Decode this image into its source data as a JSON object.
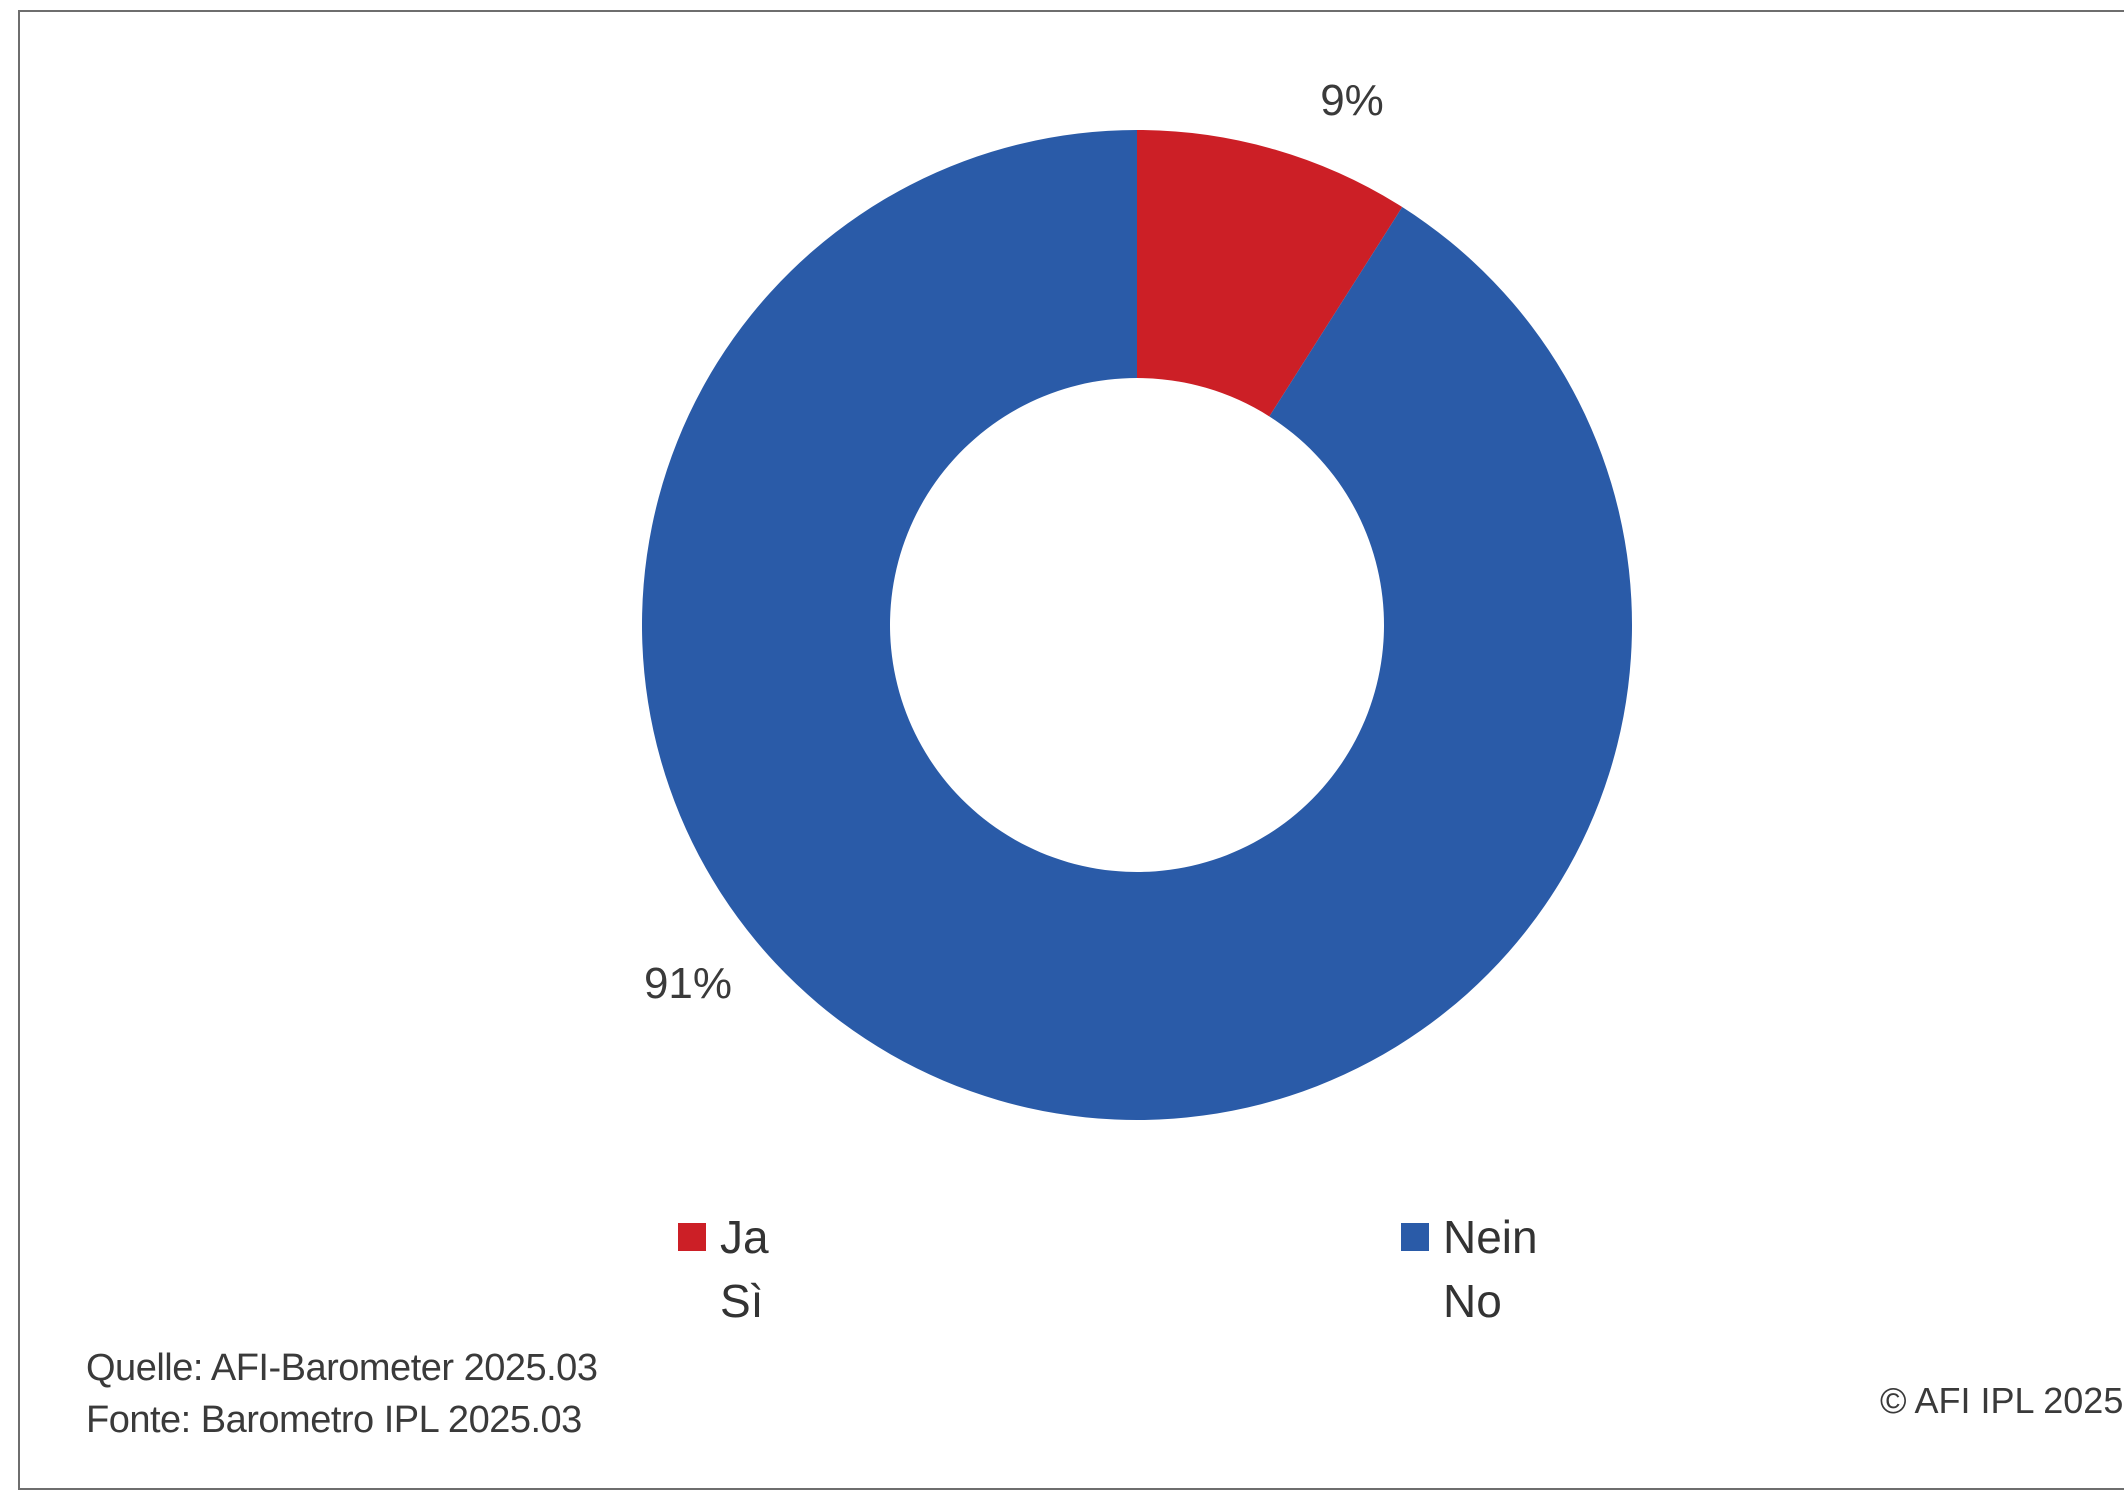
{
  "chart_data": {
    "type": "pie",
    "donut": true,
    "slices": [
      {
        "label_de": "Ja",
        "label_it": "Sì",
        "value": 9,
        "display": "9%",
        "color": "#cc1f26"
      },
      {
        "label_de": "Nein",
        "label_it": "No",
        "value": 91,
        "display": "91%",
        "color": "#2a5ba8"
      }
    ],
    "legend_position": "bottom"
  },
  "legend": {
    "items": [
      {
        "line1": "Ja",
        "line2": "Sì",
        "color": "#cc1f26"
      },
      {
        "line1": "Nein",
        "line2": "No",
        "color": "#2a5ba8"
      }
    ]
  },
  "footer": {
    "source_de": "Quelle: AFI-Barometer 2025.03",
    "source_it": "Fonte: Barometro IPL 2025.03",
    "copyright": "© AFI IPL 2025"
  }
}
